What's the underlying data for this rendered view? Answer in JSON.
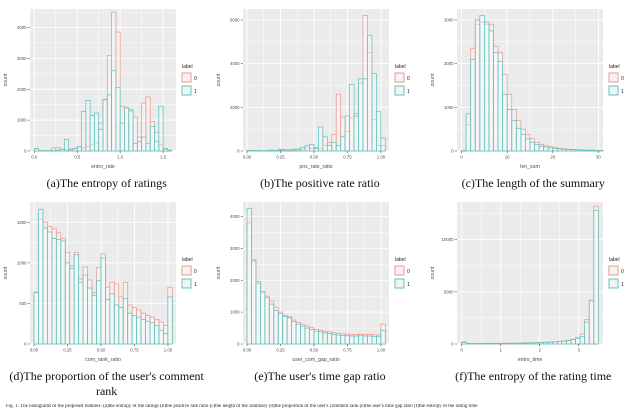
{
  "fig_caption": "Fig. 1. The histograms of the proposed features: (a)the entropy of the ratings (b)the positive rate ratio (c)the length of the summary (d)the proportion of the user's comment rank (e)the user's time gap ratio (f)the entropy of the rating time",
  "legend": {
    "title": "label",
    "entries": [
      {
        "label": "0",
        "color": "#ef9a90"
      },
      {
        "label": "1",
        "color": "#5ec4c0"
      }
    ]
  },
  "style": {
    "panel_bg": "#ebebeb",
    "grid_color": "#ffffff",
    "bar_fill": "#ffffff",
    "bar_fill_opacity": 0.3,
    "legend_key_bg": "#f4f4f4",
    "tick_text_color": "#4d4d4d"
  },
  "chart_data": [
    {
      "id": "a",
      "type": "bar",
      "caption": "(a)The entropy of ratings",
      "xlabel": "entro_rate",
      "ylabel": "count",
      "xlim": [
        -0.05,
        1.65
      ],
      "ylim": [
        0,
        4600
      ],
      "xticks": [
        0.0,
        0.5,
        1.0,
        1.5
      ],
      "xtick_labels": [
        "0.0",
        "0.5",
        "1.0",
        "1.5"
      ],
      "yticks": [
        0,
        1000,
        2000,
        3000,
        4000
      ],
      "ytick_labels": [
        "0",
        "1000",
        "2000",
        "3000",
        "4000"
      ],
      "x0": 0.0,
      "bin_width": 0.05,
      "series": [
        {
          "name": "0",
          "values": [
            80,
            0,
            0,
            0,
            100,
            110,
            50,
            30,
            60,
            70,
            120,
            90,
            150,
            200,
            250,
            900,
            1650,
            3100,
            4500,
            3850,
            1450,
            1400,
            1350,
            1100,
            450,
            1550,
            1750,
            950,
            600,
            200,
            50,
            30
          ]
        },
        {
          "name": "1",
          "values": [
            70,
            0,
            0,
            0,
            0,
            30,
            60,
            380,
            40,
            90,
            150,
            1280,
            1640,
            1150,
            1230,
            700,
            1670,
            1820,
            2600,
            2050,
            900,
            1400,
            1300,
            250,
            300,
            450,
            250,
            800,
            300,
            1450,
            80,
            0
          ]
        }
      ]
    },
    {
      "id": "b",
      "type": "bar",
      "caption": "(b)The positive rate ratio",
      "xlabel": "pos_rate_ratio",
      "ylabel": "count",
      "xlim": [
        -0.03,
        1.06
      ],
      "ylim": [
        0,
        6500
      ],
      "xticks": [
        0.0,
        0.25,
        0.5,
        0.75,
        1.0
      ],
      "xtick_labels": [
        "0.00",
        "0.25",
        "0.50",
        "0.75",
        "1.00"
      ],
      "yticks": [
        0,
        2000,
        4000,
        6000
      ],
      "ytick_labels": [
        "0",
        "2000",
        "4000",
        "6000"
      ],
      "x0": 0.0,
      "bin_width": 0.0333,
      "series": [
        {
          "name": "0",
          "values": [
            20,
            10,
            10,
            10,
            10,
            15,
            20,
            80,
            30,
            30,
            40,
            50,
            60,
            150,
            120,
            150,
            100,
            250,
            400,
            750,
            2600,
            1550,
            900,
            1500,
            1700,
            3100,
            6200,
            4500,
            1450,
            250,
            250
          ]
        },
        {
          "name": "1",
          "values": [
            30,
            10,
            10,
            15,
            20,
            40,
            30,
            40,
            60,
            50,
            80,
            90,
            150,
            250,
            300,
            120,
            1100,
            650,
            250,
            400,
            250,
            650,
            1600,
            3050,
            1600,
            3300,
            3300,
            5300,
            3550,
            1800,
            600
          ]
        }
      ]
    },
    {
      "id": "c",
      "type": "bar",
      "caption": "(c)The length of the summary",
      "xlabel": "len_sum",
      "ylabel": "count",
      "xlim": [
        -1,
        31
      ],
      "ylim": [
        0,
        3250
      ],
      "xticks": [
        0,
        10,
        20,
        30
      ],
      "xtick_labels": [
        "0",
        "10",
        "20",
        "30"
      ],
      "yticks": [
        0,
        1000,
        2000,
        3000
      ],
      "ytick_labels": [
        "0",
        "1000",
        "2000",
        "3000"
      ],
      "x0": 0,
      "bin_width": 1,
      "series": [
        {
          "name": "0",
          "values": [
            0,
            600,
            2350,
            2900,
            2950,
            2900,
            2900,
            2400,
            2250,
            1750,
            1300,
            950,
            700,
            500,
            380,
            280,
            200,
            150,
            120,
            100,
            80,
            60,
            50,
            40,
            35,
            30,
            25,
            20,
            20,
            15,
            10
          ]
        },
        {
          "name": "1",
          "values": [
            0,
            850,
            2100,
            3000,
            3100,
            2950,
            2750,
            2250,
            2050,
            1300,
            950,
            700,
            520,
            380,
            280,
            200,
            150,
            110,
            90,
            70,
            60,
            50,
            40,
            35,
            30,
            25,
            20,
            18,
            15,
            12,
            10
          ]
        }
      ]
    },
    {
      "id": "d",
      "type": "bar",
      "caption": "(d)The proportion of the user's comment rank",
      "xlabel": "com_rank_ratio",
      "ylabel": "count",
      "xlim": [
        -0.03,
        1.06
      ],
      "ylim": [
        0,
        1750
      ],
      "xticks": [
        0.0,
        0.25,
        0.5,
        0.75,
        1.0
      ],
      "xtick_labels": [
        "0.00",
        "0.25",
        "0.50",
        "0.75",
        "1.00"
      ],
      "yticks": [
        0,
        500,
        1000,
        1500
      ],
      "ytick_labels": [
        "0",
        "500",
        "1000",
        "1500"
      ],
      "x0": 0.0,
      "bin_width": 0.0333,
      "series": [
        {
          "name": "0",
          "values": [
            630,
            1540,
            1500,
            1450,
            1420,
            1370,
            1300,
            1130,
            960,
            1130,
            800,
            950,
            790,
            630,
            940,
            1110,
            700,
            760,
            740,
            580,
            760,
            480,
            450,
            420,
            380,
            350,
            330,
            300,
            270,
            230,
            700
          ]
        },
        {
          "name": "1",
          "values": [
            640,
            1660,
            1430,
            1380,
            1300,
            1290,
            1270,
            1000,
            930,
            1100,
            760,
            850,
            690,
            600,
            780,
            1060,
            550,
            620,
            480,
            450,
            560,
            380,
            350,
            330,
            300,
            280,
            260,
            230,
            170,
            130,
            580
          ]
        }
      ]
    },
    {
      "id": "e",
      "type": "bar",
      "caption": "(e)The user's time gap ratio",
      "xlabel": "user_com_gap_ratio",
      "ylabel": "count",
      "xlim": [
        -0.03,
        1.06
      ],
      "ylim": [
        0,
        4450
      ],
      "xticks": [
        0.0,
        0.25,
        0.5,
        0.75,
        1.0
      ],
      "xtick_labels": [
        "0.00",
        "0.25",
        "0.50",
        "0.75",
        "1.00"
      ],
      "yticks": [
        0,
        1000,
        2000,
        3000,
        4000
      ],
      "ytick_labels": [
        "0",
        "1000",
        "2000",
        "3000",
        "4000"
      ],
      "x0": 0.0,
      "bin_width": 0.0333,
      "series": [
        {
          "name": "0",
          "values": [
            3800,
            2650,
            1900,
            1600,
            1500,
            1350,
            1150,
            1000,
            900,
            850,
            750,
            680,
            620,
            560,
            510,
            460,
            430,
            400,
            380,
            350,
            330,
            320,
            310,
            300,
            300,
            310,
            300,
            300,
            290,
            280,
            620
          ]
        },
        {
          "name": "1",
          "values": [
            4250,
            2600,
            1950,
            1650,
            1450,
            1250,
            1050,
            950,
            870,
            820,
            700,
            620,
            560,
            500,
            450,
            400,
            380,
            350,
            330,
            300,
            280,
            270,
            260,
            250,
            250,
            260,
            250,
            250,
            240,
            230,
            420
          ]
        }
      ]
    },
    {
      "id": "f",
      "type": "bar",
      "caption": "(f)The entropy of the rating time",
      "xlabel": "entro_time",
      "ylabel": "count",
      "xlim": [
        -0.12,
        3.62
      ],
      "ylim": [
        0,
        13600
      ],
      "xticks": [
        0,
        1,
        2,
        3
      ],
      "xtick_labels": [
        "0",
        "1",
        "2",
        "3"
      ],
      "yticks": [
        0,
        5000,
        10000
      ],
      "ytick_labels": [
        "0",
        "5000",
        "10000"
      ],
      "x0": 0.0,
      "bin_width": 0.1167,
      "series": [
        {
          "name": "0",
          "values": [
            200,
            60,
            50,
            50,
            50,
            60,
            60,
            60,
            70,
            70,
            80,
            80,
            90,
            100,
            110,
            120,
            130,
            150,
            170,
            190,
            220,
            260,
            300,
            350,
            450,
            600,
            950,
            2350,
            4100,
            13200
          ]
        },
        {
          "name": "1",
          "values": [
            150,
            40,
            40,
            40,
            40,
            40,
            50,
            50,
            50,
            60,
            60,
            60,
            70,
            80,
            90,
            100,
            110,
            130,
            150,
            170,
            200,
            240,
            280,
            320,
            420,
            550,
            700,
            2100,
            4200,
            12800
          ]
        }
      ]
    }
  ]
}
